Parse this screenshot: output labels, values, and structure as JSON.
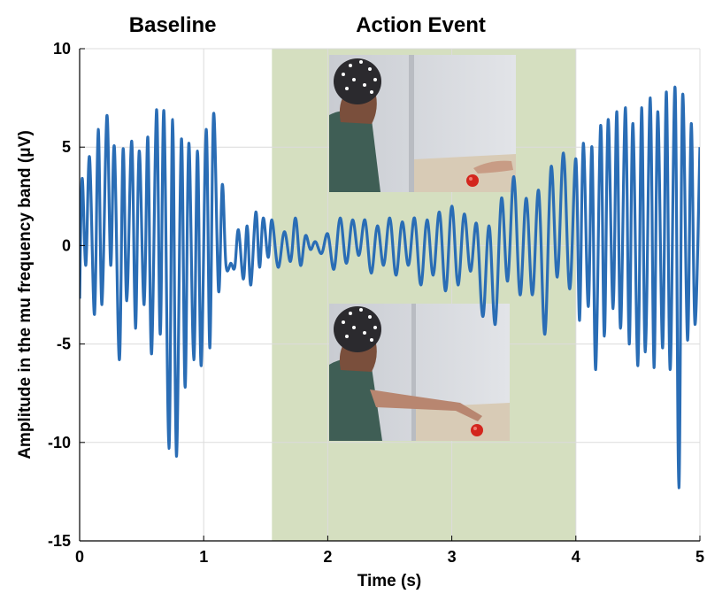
{
  "chart_data": {
    "type": "line",
    "title": "",
    "xlabel": "Time (s)",
    "ylabel": "Amplitude in the mu frequency band (μV)",
    "xlim": [
      0,
      5
    ],
    "ylim": [
      -15,
      10
    ],
    "xticks": [
      0,
      1,
      2,
      3,
      4,
      5
    ],
    "yticks": [
      10,
      5,
      0,
      -5,
      -10,
      -15
    ],
    "grid": true,
    "series_color": "#2a6db5",
    "shaded_region": {
      "x": [
        1.55,
        4.0
      ],
      "color": "#d5dfc0"
    },
    "section_labels": [
      {
        "text": "Baseline",
        "x": 0.75
      },
      {
        "text": "Action Event",
        "x": 2.75
      }
    ],
    "series": [
      {
        "x": [
          0,
          0.02,
          0.05,
          0.08,
          0.12,
          0.15,
          0.18,
          0.22,
          0.25,
          0.28,
          0.32,
          0.35,
          0.38,
          0.42,
          0.45,
          0.48,
          0.52,
          0.55,
          0.58,
          0.62,
          0.65,
          0.68,
          0.72,
          0.75,
          0.78,
          0.82,
          0.85,
          0.88,
          0.92,
          0.95,
          0.98,
          1.02,
          1.05,
          1.08,
          1.12,
          1.15,
          1.18,
          1.22,
          1.25,
          1.28,
          1.32,
          1.35,
          1.38,
          1.42,
          1.45,
          1.48,
          1.52,
          1.55,
          1.6,
          1.65,
          1.7,
          1.74,
          1.78,
          1.82,
          1.86,
          1.9,
          1.95,
          2.0,
          2.05,
          2.1,
          2.15,
          2.2,
          2.25,
          2.3,
          2.35,
          2.4,
          2.45,
          2.5,
          2.55,
          2.6,
          2.65,
          2.7,
          2.75,
          2.8,
          2.85,
          2.9,
          2.95,
          3.0,
          3.05,
          3.1,
          3.15,
          3.2,
          3.25,
          3.3,
          3.35,
          3.4,
          3.45,
          3.5,
          3.55,
          3.6,
          3.65,
          3.7,
          3.75,
          3.8,
          3.85,
          3.9,
          3.95,
          4.0,
          4.03,
          4.06,
          4.1,
          4.13,
          4.16,
          4.2,
          4.23,
          4.26,
          4.3,
          4.33,
          4.36,
          4.4,
          4.43,
          4.46,
          4.5,
          4.53,
          4.56,
          4.6,
          4.63,
          4.66,
          4.7,
          4.73,
          4.76,
          4.8,
          4.83,
          4.86,
          4.9,
          4.93,
          4.96,
          5.0
        ],
        "y": [
          -2.7,
          3.4,
          -1.0,
          4.5,
          -3.5,
          5.9,
          -3.0,
          6.6,
          -1.0,
          5.0,
          -5.8,
          4.9,
          -2.8,
          5.3,
          -4.2,
          4.8,
          -3.0,
          5.5,
          -5.5,
          6.9,
          -4.5,
          6.8,
          -10.3,
          6.4,
          -10.7,
          5.4,
          -7.2,
          5.2,
          -5.8,
          4.8,
          -6.1,
          5.9,
          -5.2,
          6.7,
          -2.3,
          3.1,
          -1.0,
          -0.9,
          -1.1,
          0.8,
          -1.7,
          1.0,
          -2.0,
          1.7,
          -1.1,
          1.4,
          -0.6,
          1.3,
          -1.1,
          0.7,
          -0.8,
          1.4,
          -1.0,
          0.5,
          -0.2,
          0.2,
          -0.4,
          0.6,
          -1.2,
          1.4,
          -0.9,
          1.3,
          -0.5,
          1.3,
          -1.4,
          1.0,
          -1.0,
          1.4,
          -1.5,
          1.2,
          -1.0,
          1.4,
          -2.0,
          1.3,
          -1.5,
          1.7,
          -2.3,
          2.0,
          -2.0,
          1.6,
          -1.3,
          1.1,
          -3.6,
          1.0,
          -4.0,
          2.4,
          -1.8,
          3.5,
          -2.5,
          2.4,
          -2.5,
          2.8,
          -4.5,
          4.0,
          -1.6,
          4.7,
          -2.2,
          4.4,
          -3.8,
          5.2,
          -3.1,
          5.0,
          -6.3,
          6.1,
          -4.6,
          6.4,
          -3.2,
          6.8,
          -4.2,
          7.0,
          -5.0,
          6.2,
          -6.1,
          7.0,
          -5.4,
          7.5,
          -6.2,
          6.8,
          -5.2,
          7.8,
          -6.3,
          8.0,
          -12.3,
          7.6,
          -4.8,
          6.2,
          -4.0,
          5.0
        ]
      }
    ]
  },
  "images": [
    {
      "name": "photo-hand-far",
      "description_icon": "photo-icon"
    },
    {
      "name": "photo-hand-reaching",
      "description_icon": "photo-icon"
    }
  ]
}
